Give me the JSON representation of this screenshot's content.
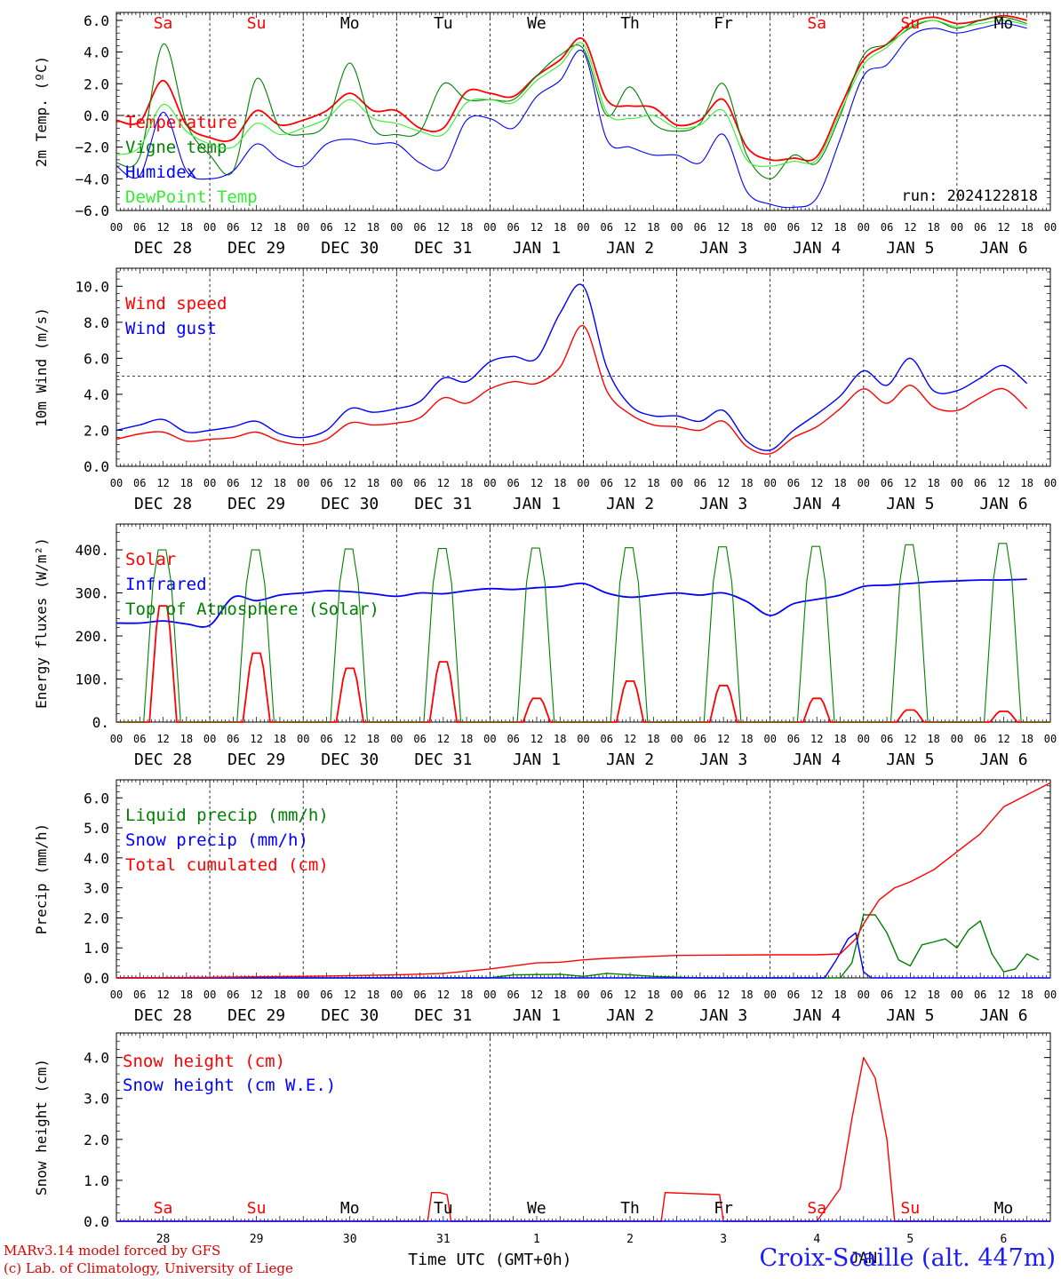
{
  "colors": {
    "red": "#ff0000",
    "green": "#008000",
    "blue": "#0000ff",
    "lightgreen": "#33ee33",
    "black": "#000000"
  },
  "run_label": "run: 2024122818",
  "day_names": [
    "Sa",
    "Su",
    "Mo",
    "Tu",
    "We",
    "Th",
    "Fr",
    "Sa",
    "Su",
    "Mo"
  ],
  "weekend_days": [
    0,
    1,
    7,
    8
  ],
  "date_labels": [
    "DEC 28",
    "DEC 29",
    "DEC 30",
    "DEC 31",
    "JAN  1",
    "JAN  2",
    "JAN  3",
    "JAN  4",
    "JAN  5",
    "JAN  6"
  ],
  "hour_ticks": [
    "00",
    "06",
    "12",
    "18"
  ],
  "bottom_day_numbers": [
    "28",
    "29",
    "30",
    "31",
    "1",
    "2",
    "3",
    "4",
    "5",
    "6"
  ],
  "bottom_month": "JAN",
  "xlabel": "Time UTC (GMT+0h)",
  "footer": {
    "credit1": "MARv3.14 model forced by GFS",
    "credit2": "(c) Lab. of Climatology, University of Liege",
    "station": "Croix-Scaille (alt. 447m)"
  },
  "chart_data": [
    {
      "type": "line",
      "ylabel": "2m Temp. (ºC)",
      "ylim": [
        -6,
        6.5
      ],
      "yticks": [
        -6,
        -4,
        -2,
        0,
        2,
        4,
        6
      ],
      "ytick_labels": [
        "−6.0",
        "−4.0",
        "−2.0",
        "0.0",
        "2.0",
        "4.0",
        "6.0"
      ],
      "ref_line": 0,
      "legend_position": "top-left",
      "x_hours": [
        0,
        6,
        12,
        18,
        24,
        30,
        36,
        42,
        48,
        54,
        60,
        66,
        72,
        78,
        84,
        90,
        96,
        102,
        108,
        114,
        120,
        126,
        132,
        138,
        144,
        150,
        156,
        162,
        168,
        174,
        180,
        186,
        192,
        198,
        204,
        210,
        216,
        222,
        228,
        234
      ],
      "series": [
        {
          "name": "Temperature",
          "color": "red",
          "values": [
            -0.3,
            -0.4,
            2.2,
            -0.6,
            -1.4,
            -1.5,
            0.3,
            -0.6,
            -0.3,
            0.3,
            1.4,
            0.3,
            0.3,
            -0.8,
            -0.8,
            1.5,
            1.4,
            1.2,
            2.5,
            3.5,
            4.8,
            1.0,
            0.6,
            0.5,
            -0.6,
            -0.3,
            1.0,
            -2.0,
            -2.8,
            -2.7,
            -2.6,
            0.5,
            3.5,
            4.5,
            5.8,
            6.2,
            5.8,
            6.0,
            6.3,
            6.0
          ]
        },
        {
          "name": "Vigne temp",
          "color": "green",
          "values": [
            -3.0,
            -2.6,
            4.5,
            -0.5,
            -2.5,
            -3.5,
            2.3,
            -0.8,
            -1.2,
            -0.5,
            3.3,
            -0.8,
            -1.2,
            -1.0,
            2.0,
            1.0,
            1.0,
            1.0,
            2.5,
            3.8,
            4.2,
            0.0,
            1.8,
            -0.5,
            -1.0,
            -0.5,
            2.0,
            -2.5,
            -4.0,
            -2.5,
            -3.0,
            0.0,
            3.8,
            4.5,
            5.5,
            6.0,
            5.5,
            6.0,
            6.2,
            5.8
          ]
        },
        {
          "name": "Humidex",
          "color": "blue",
          "values": [
            -3.2,
            -3.8,
            0.2,
            -3.5,
            -4.0,
            -3.5,
            -1.8,
            -2.8,
            -3.2,
            -1.8,
            -1.5,
            -1.8,
            -1.8,
            -3.0,
            -3.3,
            -0.3,
            -0.2,
            -0.8,
            1.2,
            2.2,
            4.0,
            -1.5,
            -2.0,
            -2.5,
            -2.5,
            -3.0,
            -1.2,
            -4.8,
            -5.6,
            -5.8,
            -5.2,
            -1.5,
            2.5,
            3.2,
            5.0,
            5.5,
            5.2,
            5.5,
            5.8,
            5.5
          ]
        },
        {
          "name": "DewPoint Temp",
          "color": "lightgreen",
          "values": [
            -2.5,
            -2.0,
            0.7,
            -1.0,
            -1.8,
            -2.0,
            -0.5,
            -1.2,
            -0.8,
            -0.2,
            1.0,
            -0.2,
            -0.5,
            -1.0,
            -1.2,
            0.8,
            1.0,
            0.8,
            2.2,
            3.2,
            4.5,
            0.2,
            -0.2,
            0.0,
            -0.8,
            -0.6,
            0.3,
            -2.8,
            -3.2,
            -2.9,
            -2.8,
            0.2,
            3.2,
            4.3,
            5.6,
            6.0,
            5.6,
            5.8,
            6.0,
            5.7
          ]
        }
      ]
    },
    {
      "type": "line",
      "ylabel": "10m Wind (m/s)",
      "ylim": [
        0,
        11
      ],
      "yticks": [
        0,
        2,
        4,
        6,
        8,
        10
      ],
      "ytick_labels": [
        "0.0",
        "2.0",
        "4.0",
        "6.0",
        "8.0",
        "10.0"
      ],
      "ref_line": 5,
      "legend_position": "top-left",
      "x_hours": [
        0,
        6,
        12,
        18,
        24,
        30,
        36,
        42,
        48,
        54,
        60,
        66,
        72,
        78,
        84,
        90,
        96,
        102,
        108,
        114,
        120,
        126,
        132,
        138,
        144,
        150,
        156,
        162,
        168,
        174,
        180,
        186,
        192,
        198,
        204,
        210,
        216,
        222,
        228,
        234
      ],
      "series": [
        {
          "name": "Wind speed",
          "color": "red",
          "values": [
            1.5,
            1.8,
            1.9,
            1.4,
            1.5,
            1.6,
            1.9,
            1.4,
            1.2,
            1.5,
            2.4,
            2.3,
            2.4,
            2.7,
            3.8,
            3.5,
            4.3,
            4.7,
            4.6,
            5.5,
            7.8,
            4.2,
            2.9,
            2.3,
            2.2,
            2.0,
            2.5,
            1.1,
            0.7,
            1.6,
            2.2,
            3.2,
            4.3,
            3.5,
            4.5,
            3.3,
            3.1,
            3.8,
            4.3,
            3.2
          ]
        },
        {
          "name": "Wind gust",
          "color": "blue",
          "values": [
            2.0,
            2.3,
            2.6,
            1.9,
            2.0,
            2.2,
            2.5,
            1.8,
            1.6,
            2.0,
            3.2,
            3.0,
            3.2,
            3.6,
            4.9,
            4.7,
            5.8,
            6.1,
            6.0,
            8.5,
            10.0,
            5.5,
            3.4,
            2.8,
            2.8,
            2.5,
            3.1,
            1.4,
            0.9,
            2.0,
            2.9,
            3.9,
            5.3,
            4.5,
            6.0,
            4.2,
            4.2,
            4.9,
            5.6,
            4.6
          ]
        }
      ]
    },
    {
      "type": "line",
      "ylabel": "Energy fluxes (W/m²)",
      "ylim": [
        0,
        460
      ],
      "yticks": [
        0,
        100,
        200,
        300,
        400
      ],
      "ytick_labels": [
        "0.",
        "100.",
        "200.",
        "300.",
        "400."
      ],
      "legend_position": "top-left",
      "series": [
        {
          "name": "Solar",
          "color": "red",
          "peaks": [
            270,
            160,
            125,
            140,
            55,
            95,
            85,
            55,
            28,
            25
          ]
        },
        {
          "name": "Infrared",
          "color": "blue",
          "x_hours": [
            0,
            6,
            12,
            18,
            24,
            30,
            36,
            42,
            48,
            54,
            60,
            66,
            72,
            78,
            84,
            90,
            96,
            102,
            108,
            114,
            120,
            126,
            132,
            138,
            144,
            150,
            156,
            162,
            168,
            174,
            180,
            186,
            192,
            198,
            204,
            210,
            216,
            222,
            228,
            234
          ],
          "values": [
            230,
            230,
            235,
            228,
            225,
            290,
            282,
            295,
            300,
            305,
            303,
            298,
            292,
            300,
            298,
            305,
            310,
            308,
            312,
            315,
            322,
            300,
            290,
            295,
            300,
            295,
            300,
            280,
            248,
            275,
            285,
            295,
            315,
            318,
            322,
            326,
            328,
            330,
            330,
            332
          ]
        },
        {
          "name": "Top of Atmosphere (Solar)",
          "color": "green",
          "peaks": [
            400,
            400,
            402,
            403,
            404,
            405,
            407,
            408,
            412,
            415
          ]
        }
      ]
    },
    {
      "type": "line",
      "ylabel": "Precip (mm/h)",
      "ylim": [
        0,
        6.6
      ],
      "yticks": [
        0,
        1,
        2,
        3,
        4,
        5,
        6
      ],
      "ytick_labels": [
        "0.0",
        "1.0",
        "2.0",
        "3.0",
        "4.0",
        "5.0",
        "6.0"
      ],
      "legend_position": "top-left",
      "series": [
        {
          "name": "Liquid precip (mm/h)",
          "color": "green",
          "x_hours": [
            0,
            96,
            102,
            114,
            120,
            126,
            132,
            138,
            150,
            186,
            189,
            192,
            195,
            198,
            201,
            204,
            207,
            210,
            213,
            216,
            219,
            222,
            225,
            228,
            231,
            234,
            237
          ],
          "values": [
            0,
            0,
            0.1,
            0.12,
            0.05,
            0.15,
            0.1,
            0.05,
            0,
            0,
            0.5,
            2.1,
            2.1,
            1.5,
            0.6,
            0.4,
            1.1,
            1.2,
            1.3,
            1.0,
            1.6,
            1.9,
            0.8,
            0.2,
            0.3,
            0.8,
            0.6
          ]
        },
        {
          "name": "Snow precip (mm/h)",
          "color": "blue",
          "x_hours": [
            0,
            182,
            185,
            188,
            190,
            192,
            194,
            240
          ],
          "values": [
            0,
            0,
            0.6,
            1.3,
            1.5,
            0.2,
            0,
            0
          ]
        },
        {
          "name": "Total cumulated (cm)",
          "color": "red",
          "x_hours": [
            0,
            24,
            48,
            72,
            84,
            96,
            108,
            114,
            120,
            126,
            138,
            144,
            156,
            168,
            180,
            186,
            190,
            192,
            196,
            200,
            204,
            210,
            216,
            222,
            228,
            234,
            240
          ],
          "values": [
            0,
            0.02,
            0.05,
            0.1,
            0.15,
            0.3,
            0.5,
            0.52,
            0.6,
            0.65,
            0.72,
            0.75,
            0.76,
            0.77,
            0.77,
            0.8,
            1.3,
            1.8,
            2.6,
            3.0,
            3.2,
            3.6,
            4.2,
            4.8,
            5.7,
            6.1,
            6.5
          ]
        }
      ]
    },
    {
      "type": "line",
      "ylabel": "Snow height (cm)",
      "ylim": [
        0,
        4.6
      ],
      "yticks": [
        0,
        1,
        2,
        3,
        4
      ],
      "ytick_labels": [
        "0.0",
        "1.0",
        "2.0",
        "3.0",
        "4.0"
      ],
      "legend_position": "top-left",
      "series": [
        {
          "name": "Snow height (cm)",
          "color": "red",
          "x_hours": [
            0,
            80,
            81,
            83,
            85,
            86,
            140,
            141,
            155,
            156,
            157,
            180,
            186,
            189,
            192,
            195,
            198,
            200,
            240
          ],
          "values": [
            0,
            0,
            0.7,
            0.7,
            0.65,
            0,
            0,
            0.7,
            0.65,
            0,
            0,
            0,
            0.8,
            2.5,
            4.0,
            3.5,
            2.0,
            0,
            0
          ]
        },
        {
          "name": "Snow height (cm W.E.)",
          "color": "blue",
          "x_hours": [
            0,
            240
          ],
          "values": [
            0,
            0
          ]
        }
      ]
    }
  ]
}
